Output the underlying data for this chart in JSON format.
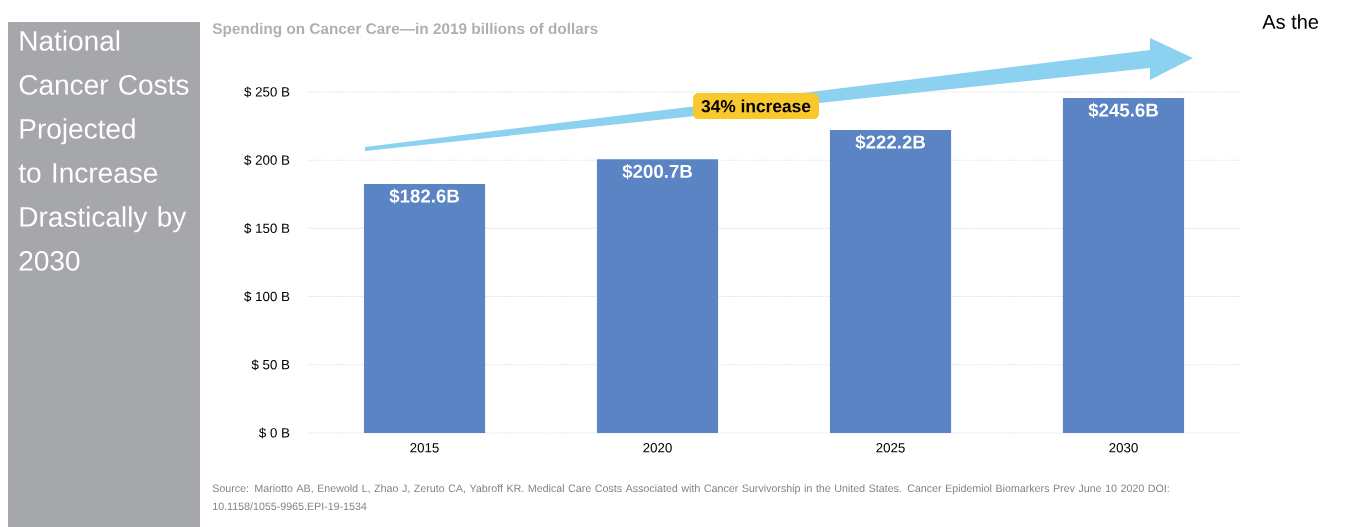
{
  "chart_data": {
    "type": "bar",
    "title": "National Cancer Costs Projected to Increase Drastically by 2030",
    "subtitle": "Spending on Cancer Care—in 2019 billions of dollars",
    "categories": [
      "2015",
      "2020",
      "2025",
      "2030"
    ],
    "values": [
      182.6,
      200.7,
      222.2,
      245.6
    ],
    "color": "#5b84c4",
    "value_labels": [
      "$182.6B",
      "$200.7B",
      "$222.2B",
      "$245.6B"
    ],
    "ylim": [
      0,
      250
    ],
    "yticks": [
      {
        "value": 0,
        "label": "$ 0 B"
      },
      {
        "value": 50,
        "label": "$ 50 B"
      },
      {
        "value": 100,
        "label": "$ 100 B"
      },
      {
        "value": 150,
        "label": "$ 150 B"
      },
      {
        "value": 200,
        "label": "$ 200 B"
      },
      {
        "value": 250,
        "label": "$ 250 B"
      }
    ],
    "grid": "y",
    "annotations": [
      "34% increase",
      "Source: Mariotto AB, Enewold L, Zhao J, Zeruto CA, Yabroff KR. Medical Care Costs Associated with Cancer Survivorship in the United States. Cancer Epidemiol Biomarkers Prev June 10 2020 DOI: 10.1158/1055-9965.EPI-19-1534",
      "As the"
    ]
  }
}
